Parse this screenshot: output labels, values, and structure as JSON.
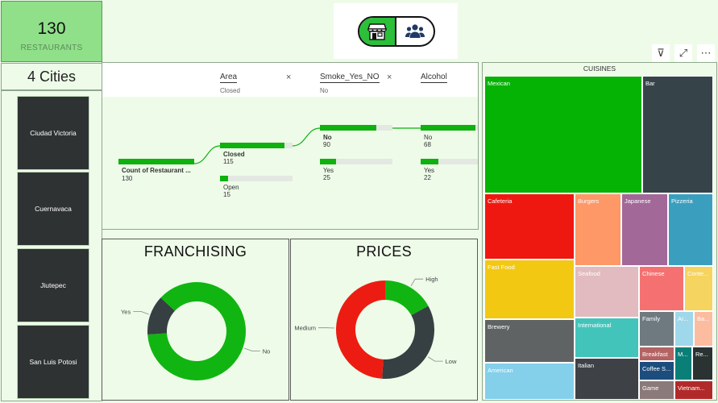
{
  "kpi": {
    "count": "130",
    "label": "RESTAURANTS",
    "cities": "4 Cities"
  },
  "cities": [
    "Ciudad Victoria",
    "Cuernavaca",
    "Jiutepec",
    "San Luis Potosi"
  ],
  "icons": {
    "store": "store-icon",
    "users": "users-icon",
    "filter": "filter-icon",
    "focus": "focus-mode-icon",
    "more": "more-options-icon"
  },
  "header_icons": {
    "filter": "⊽",
    "focus": "⤢",
    "more": "⋯"
  },
  "tree": {
    "levels": [
      {
        "title": "Area",
        "sub": "Closed"
      },
      {
        "title": "Smoke_Yes_NO",
        "sub": "No"
      },
      {
        "title": "Alcohol",
        "sub": ""
      }
    ],
    "close_glyph": "×",
    "root": {
      "label": "Count of Restaurant ...",
      "value": "130"
    },
    "nodes": [
      {
        "label": "Closed",
        "value": "115",
        "fraction": 0.885
      },
      {
        "label": "Open",
        "value": "15",
        "fraction": 0.115
      },
      {
        "label": "No",
        "value": "90",
        "fraction": 0.783
      },
      {
        "label": "Yes",
        "value": "25",
        "fraction": 0.217
      },
      {
        "label": "No",
        "value": "68",
        "fraction": 0.756
      },
      {
        "label": "Yes",
        "value": "22",
        "fraction": 0.244
      }
    ]
  },
  "chart_data": [
    {
      "type": "pie",
      "title": "FRANCHISING",
      "labels": [
        "No",
        "Yes"
      ],
      "values": [
        87,
        13
      ],
      "colors": [
        "#11b511",
        "#363f41"
      ]
    },
    {
      "type": "pie",
      "title": "PRICES",
      "labels": [
        "High",
        "Low",
        "Medium"
      ],
      "values": [
        17,
        34,
        49
      ],
      "colors": [
        "#11b511",
        "#363f41",
        "#ec1c12"
      ]
    },
    {
      "type": "treemap",
      "title": "CUISINES",
      "labels": [
        "Mexican",
        "Bar",
        "Cafeteria",
        "Burgers",
        "Japanese",
        "Pizzeria",
        "Fast Food",
        "Seafood",
        "Chinese",
        "Conte...",
        "Brewery",
        "International",
        "Family",
        "Ar...",
        "Ba...",
        "American",
        "Italian",
        "Breakfast",
        "M...",
        "Re...",
        "Coffee S...",
        "Game",
        "Vietnam..."
      ],
      "values": [
        28,
        11,
        10,
        5,
        5,
        5,
        9,
        6,
        4,
        3,
        7,
        5,
        3,
        1.5,
        1.5,
        6,
        4,
        1.5,
        1,
        1,
        1.5,
        1.5,
        1.5
      ],
      "colors": [
        "#05b305",
        "#36444a",
        "#ef1810",
        "#fe9866",
        "#a26898",
        "#3a9fbf",
        "#f2c813",
        "#e1bbbf",
        "#f57171",
        "#f5d45f",
        "#5f6364",
        "#43c4bb",
        "#6f7a80",
        "#9fd8ea",
        "#fbbca0",
        "#84cfea",
        "#3e4246",
        "#b46363",
        "#0a7f78",
        "#2a3232",
        "#1c4d7c",
        "#8b7a7a",
        "#b12a2a"
      ]
    }
  ]
}
